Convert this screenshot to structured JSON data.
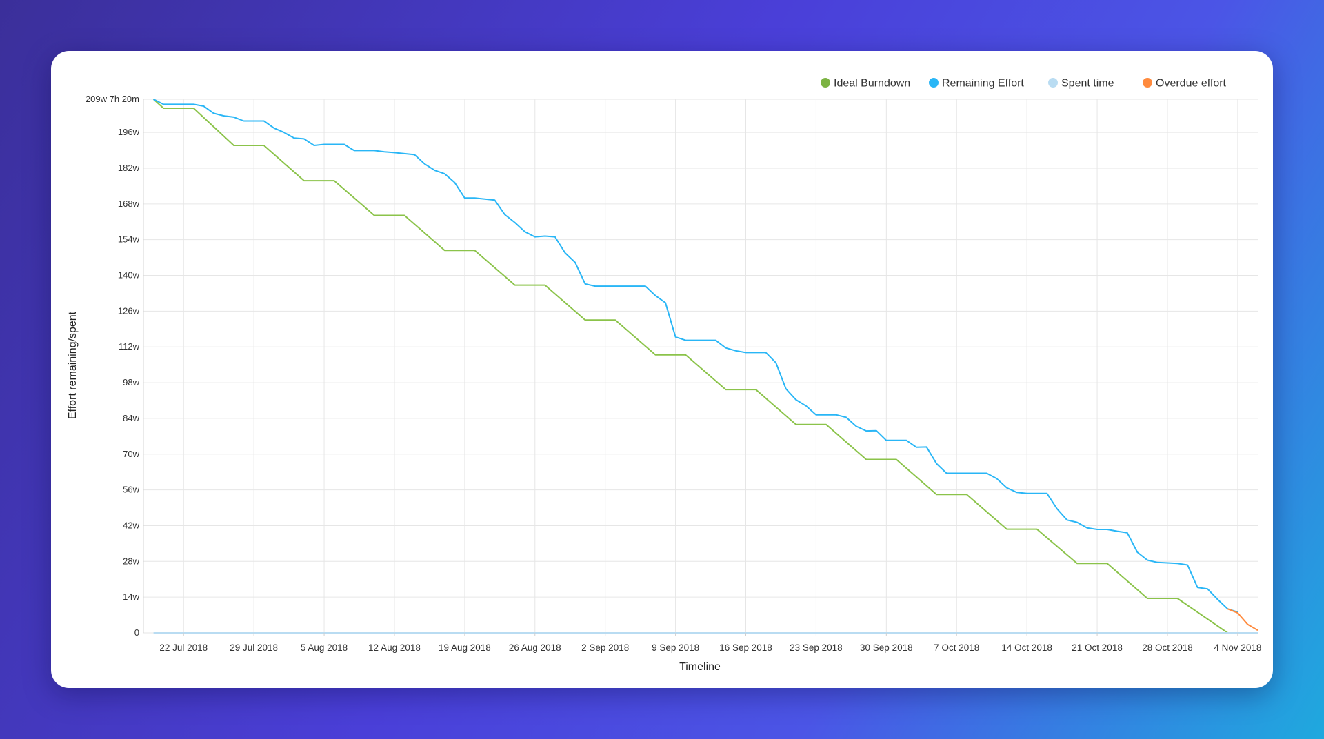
{
  "chart_data": {
    "type": "line",
    "xlabel": "Timeline",
    "ylabel": "Effort remaining/spent",
    "ylim": [
      0,
      209
    ],
    "y_ticks": [
      {
        "value": 209,
        "label": "209w 7h 20m"
      },
      {
        "value": 196,
        "label": "196w"
      },
      {
        "value": 182,
        "label": "182w"
      },
      {
        "value": 168,
        "label": "168w"
      },
      {
        "value": 154,
        "label": "154w"
      },
      {
        "value": 140,
        "label": "140w"
      },
      {
        "value": 126,
        "label": "126w"
      },
      {
        "value": 112,
        "label": "112w"
      },
      {
        "value": 98,
        "label": "98w"
      },
      {
        "value": 84,
        "label": "84w"
      },
      {
        "value": 70,
        "label": "70w"
      },
      {
        "value": 56,
        "label": "56w"
      },
      {
        "value": 42,
        "label": "42w"
      },
      {
        "value": 28,
        "label": "28w"
      },
      {
        "value": 14,
        "label": "14w"
      },
      {
        "value": 0,
        "label": "0"
      }
    ],
    "x_range": [
      "2018-07-18",
      "2018-11-06"
    ],
    "x_ticks": [
      {
        "date": "2018-07-22",
        "label": "22 Jul 2018"
      },
      {
        "date": "2018-07-29",
        "label": "29 Jul 2018"
      },
      {
        "date": "2018-08-05",
        "label": "5 Aug 2018"
      },
      {
        "date": "2018-08-12",
        "label": "12 Aug 2018"
      },
      {
        "date": "2018-08-19",
        "label": "19 Aug 2018"
      },
      {
        "date": "2018-08-26",
        "label": "26 Aug 2018"
      },
      {
        "date": "2018-09-02",
        "label": "2 Sep 2018"
      },
      {
        "date": "2018-09-09",
        "label": "9 Sep 2018"
      },
      {
        "date": "2018-09-16",
        "label": "16 Sep 2018"
      },
      {
        "date": "2018-09-23",
        "label": "23 Sep 2018"
      },
      {
        "date": "2018-09-30",
        "label": "30 Sep 2018"
      },
      {
        "date": "2018-10-07",
        "label": "7 Oct 2018"
      },
      {
        "date": "2018-10-14",
        "label": "14 Oct 2018"
      },
      {
        "date": "2018-10-21",
        "label": "21 Oct 2018"
      },
      {
        "date": "2018-10-28",
        "label": "28 Oct 2018"
      },
      {
        "date": "2018-11-04",
        "label": "4 Nov 2018"
      }
    ],
    "grid": true,
    "legend_position": "top-right",
    "series": [
      {
        "name": "Ideal Burndown",
        "color": "#8bc34a",
        "points": [
          [
            "2018-07-19",
            209
          ],
          [
            "2018-07-20",
            205.5
          ],
          [
            "2018-07-23",
            205.5
          ],
          [
            "2018-07-27",
            190.9
          ],
          [
            "2018-07-30",
            190.9
          ],
          [
            "2018-08-03",
            177.1
          ],
          [
            "2018-08-06",
            177.1
          ],
          [
            "2018-08-10",
            163.5
          ],
          [
            "2018-08-13",
            163.5
          ],
          [
            "2018-08-17",
            149.8
          ],
          [
            "2018-08-20",
            149.8
          ],
          [
            "2018-08-24",
            136.2
          ],
          [
            "2018-08-27",
            136.2
          ],
          [
            "2018-08-31",
            122.5
          ],
          [
            "2018-09-03",
            122.5
          ],
          [
            "2018-09-07",
            108.9
          ],
          [
            "2018-09-10",
            108.9
          ],
          [
            "2018-09-14",
            95.3
          ],
          [
            "2018-09-17",
            95.3
          ],
          [
            "2018-09-21",
            81.6
          ],
          [
            "2018-09-24",
            81.6
          ],
          [
            "2018-09-28",
            67.9
          ],
          [
            "2018-10-01",
            67.9
          ],
          [
            "2018-10-05",
            54.2
          ],
          [
            "2018-10-08",
            54.2
          ],
          [
            "2018-10-12",
            40.6
          ],
          [
            "2018-10-15",
            40.6
          ],
          [
            "2018-10-19",
            27.2
          ],
          [
            "2018-10-22",
            27.2
          ],
          [
            "2018-10-26",
            13.5
          ],
          [
            "2018-10-29",
            13.5
          ],
          [
            "2018-11-03",
            0
          ]
        ]
      },
      {
        "name": "Remaining Effort",
        "color": "#29b6f6",
        "points": [
          [
            "2018-07-19",
            209
          ],
          [
            "2018-07-20",
            207
          ],
          [
            "2018-07-23",
            207
          ],
          [
            "2018-07-24",
            206.3
          ],
          [
            "2018-07-25",
            203.5
          ],
          [
            "2018-07-26",
            202.5
          ],
          [
            "2018-07-27",
            202
          ],
          [
            "2018-07-28",
            200.5
          ],
          [
            "2018-07-30",
            200.5
          ],
          [
            "2018-07-31",
            197.7
          ],
          [
            "2018-08-01",
            196
          ],
          [
            "2018-08-02",
            193.8
          ],
          [
            "2018-08-03",
            193.5
          ],
          [
            "2018-08-04",
            190.9
          ],
          [
            "2018-08-05",
            191.3
          ],
          [
            "2018-08-07",
            191.3
          ],
          [
            "2018-08-08",
            188.9
          ],
          [
            "2018-08-10",
            188.9
          ],
          [
            "2018-08-11",
            188.4
          ],
          [
            "2018-08-12",
            188.1
          ],
          [
            "2018-08-13",
            187.7
          ],
          [
            "2018-08-14",
            187.3
          ],
          [
            "2018-08-15",
            183.7
          ],
          [
            "2018-08-16",
            181.2
          ],
          [
            "2018-08-17",
            179.8
          ],
          [
            "2018-08-18",
            176.4
          ],
          [
            "2018-08-19",
            170.3
          ],
          [
            "2018-08-20",
            170.3
          ],
          [
            "2018-08-21",
            169.9
          ],
          [
            "2018-08-22",
            169.5
          ],
          [
            "2018-08-23",
            163.8
          ],
          [
            "2018-08-24",
            160.7
          ],
          [
            "2018-08-25",
            157.1
          ],
          [
            "2018-08-26",
            155.1
          ],
          [
            "2018-08-27",
            155.4
          ],
          [
            "2018-08-28",
            155.1
          ],
          [
            "2018-08-29",
            148.8
          ],
          [
            "2018-08-30",
            145.1
          ],
          [
            "2018-08-31",
            136.7
          ],
          [
            "2018-09-01",
            135.8
          ],
          [
            "2018-09-06",
            135.8
          ],
          [
            "2018-09-07",
            132.1
          ],
          [
            "2018-09-08",
            129.3
          ],
          [
            "2018-09-09",
            115.9
          ],
          [
            "2018-09-10",
            114.6
          ],
          [
            "2018-09-13",
            114.6
          ],
          [
            "2018-09-14",
            111.6
          ],
          [
            "2018-09-15",
            110.5
          ],
          [
            "2018-09-16",
            109.8
          ],
          [
            "2018-09-18",
            109.8
          ],
          [
            "2018-09-19",
            105.8
          ],
          [
            "2018-09-20",
            95.6
          ],
          [
            "2018-09-21",
            91.3
          ],
          [
            "2018-09-22",
            88.9
          ],
          [
            "2018-09-23",
            85.4
          ],
          [
            "2018-09-25",
            85.4
          ],
          [
            "2018-09-26",
            84.4
          ],
          [
            "2018-09-27",
            80.9
          ],
          [
            "2018-09-28",
            79.1
          ],
          [
            "2018-09-29",
            79.2
          ],
          [
            "2018-09-30",
            75.4
          ],
          [
            "2018-10-02",
            75.4
          ],
          [
            "2018-10-03",
            72.7
          ],
          [
            "2018-10-04",
            72.8
          ],
          [
            "2018-10-05",
            66.3
          ],
          [
            "2018-10-06",
            62.5
          ],
          [
            "2018-10-10",
            62.5
          ],
          [
            "2018-10-11",
            60.4
          ],
          [
            "2018-10-12",
            56.8
          ],
          [
            "2018-10-13",
            55.0
          ],
          [
            "2018-10-14",
            54.6
          ],
          [
            "2018-10-16",
            54.6
          ],
          [
            "2018-10-17",
            48.6
          ],
          [
            "2018-10-18",
            44.2
          ],
          [
            "2018-10-19",
            43.3
          ],
          [
            "2018-10-20",
            41.1
          ],
          [
            "2018-10-21",
            40.5
          ],
          [
            "2018-10-22",
            40.5
          ],
          [
            "2018-10-23",
            39.8
          ],
          [
            "2018-10-24",
            39.2
          ],
          [
            "2018-10-25",
            31.6
          ],
          [
            "2018-10-26",
            28.5
          ],
          [
            "2018-10-27",
            27.6
          ],
          [
            "2018-10-29",
            27.2
          ],
          [
            "2018-10-30",
            26.6
          ],
          [
            "2018-10-31",
            17.8
          ],
          [
            "2018-11-01",
            17.2
          ],
          [
            "2018-11-02",
            13.1
          ],
          [
            "2018-11-03",
            9.4
          ],
          [
            "2018-11-04",
            8.1
          ]
        ]
      },
      {
        "name": "Spent time",
        "color": "#b9dcf2",
        "points": [
          [
            "2018-07-19",
            0
          ],
          [
            "2018-11-06",
            0
          ]
        ]
      },
      {
        "name": "Overdue effort",
        "color": "#ff8a3d",
        "points": [
          [
            "2018-11-03",
            9.4
          ],
          [
            "2018-11-04",
            7.8
          ],
          [
            "2018-11-05",
            3.3
          ],
          [
            "2018-11-06",
            1.0
          ]
        ]
      }
    ]
  }
}
